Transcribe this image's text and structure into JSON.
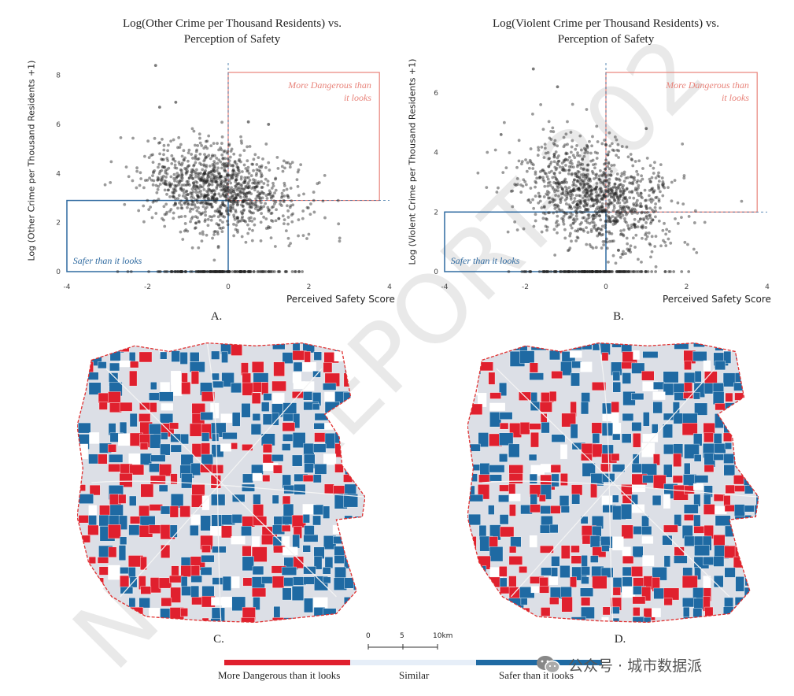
{
  "watermark": "NSHI-REPORT-202",
  "chart_data": [
    {
      "panel": "A.",
      "type": "scatter",
      "title_line1": "Log(Other Crime per Thousand Residents) vs.",
      "title_line2": "Perception of Safety",
      "xlabel": "Perceived Safety Score",
      "ylabel": "Log (Other Crime per Thousand Residents +1)",
      "xlim": [
        -4,
        4
      ],
      "ylim": [
        0,
        8.5
      ],
      "xticks": [
        -4,
        -2,
        0,
        2,
        4
      ],
      "yticks": [
        0,
        2,
        4,
        6,
        8
      ],
      "threshold_x": 0,
      "threshold_y": 2.9,
      "annotations": [
        {
          "text": "More Dangerous than",
          "quadrant": "top-right",
          "color": "#e8837a"
        },
        {
          "text": "it looks",
          "quadrant": "top-right",
          "color": "#e8837a"
        },
        {
          "text": "Safer than it looks",
          "quadrant": "bottom-left",
          "color": "#2f6aa0"
        }
      ],
      "point_cloud": {
        "center_x": -0.2,
        "center_y": 3.3,
        "spread_x": 0.95,
        "spread_y": 0.9,
        "n": 1100,
        "zero_row_count": 160,
        "seed": 7
      },
      "outliers": [
        {
          "x": -1.8,
          "y": 8.4
        },
        {
          "x": -1.3,
          "y": 6.9
        },
        {
          "x": -1.7,
          "y": 6.7
        },
        {
          "x": 1.0,
          "y": 6.0
        },
        {
          "x": 0.5,
          "y": 6.1
        }
      ]
    },
    {
      "panel": "B.",
      "type": "scatter",
      "title_line1": "Log(Violent Crime per Thousand Residents) vs.",
      "title_line2": "Perception of Safety",
      "xlabel": "Perceived Safety Score",
      "ylabel": "Log (Violent Crime per Thousand Residents +1)",
      "xlim": [
        -4,
        4
      ],
      "ylim": [
        0,
        7
      ],
      "xticks": [
        -4,
        -2,
        0,
        2,
        4
      ],
      "yticks": [
        0,
        2,
        4,
        6
      ],
      "threshold_x": 0,
      "threshold_y": 2.0,
      "annotations": [
        {
          "text": "More Dangerous than",
          "quadrant": "top-right",
          "color": "#e8837a"
        },
        {
          "text": "it looks",
          "quadrant": "top-right",
          "color": "#e8837a"
        },
        {
          "text": "Safer than it looks",
          "quadrant": "bottom-left",
          "color": "#2f6aa0"
        }
      ],
      "point_cloud": {
        "center_x": -0.2,
        "center_y": 2.5,
        "spread_x": 0.95,
        "spread_y": 0.85,
        "n": 1100,
        "zero_row_count": 160,
        "seed": 13
      },
      "outliers": [
        {
          "x": -1.8,
          "y": 6.8
        },
        {
          "x": -1.2,
          "y": 6.2
        },
        {
          "x": 1.0,
          "y": 4.8
        },
        {
          "x": -2.6,
          "y": 4.6
        }
      ]
    }
  ],
  "maps": {
    "panel_c": "C.",
    "panel_d": "D.",
    "colors": {
      "dangerous": "#e0202e",
      "similar": "#dcdfe6",
      "safer": "#1f6aa3",
      "outline": "#e03030",
      "unpopulated": "#ffffff"
    },
    "seed_c": 21,
    "seed_d": 37,
    "mix_c": {
      "dangerous": 0.18,
      "safer": 0.24,
      "empty": 0.06
    },
    "mix_d": {
      "dangerous": 0.14,
      "safer": 0.28,
      "empty": 0.06
    }
  },
  "scale_bar": {
    "labels": [
      "0",
      "5",
      "10"
    ],
    "unit": "km"
  },
  "legend": {
    "items": [
      {
        "label": "More Dangerous than it looks",
        "color": "#e0202e"
      },
      {
        "label": "Similar",
        "color": "#e6eef8"
      },
      {
        "label": "Safer than it looks",
        "color": "#1f6aa3"
      }
    ]
  },
  "footer_badge": "公众号 · 城市数据派"
}
